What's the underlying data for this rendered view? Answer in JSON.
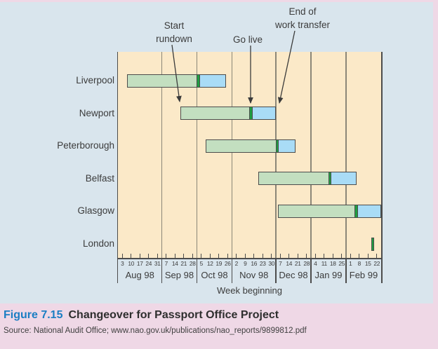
{
  "figure": {
    "label": "Figure 7.15",
    "title": "Changeover for Passport Office Project",
    "source": "Source: National Audit Office; www.nao.gov.uk/publications/nao_reports/9899812.pdf"
  },
  "chart_data": {
    "type": "gantt",
    "xlabel": "Week beginning",
    "x_unit": "weeks, week 0 = week beginning 3 Aug 98",
    "xlim_weeks": [
      0,
      30
    ],
    "axis_months": [
      {
        "label": "Aug 98",
        "weeks": [
          "3",
          "10",
          "17",
          "24",
          "31"
        ]
      },
      {
        "label": "Sep 98",
        "weeks": [
          "7",
          "14",
          "21",
          "28"
        ]
      },
      {
        "label": "Oct 98",
        "weeks": [
          "5",
          "12",
          "19",
          "26"
        ]
      },
      {
        "label": "Nov 98",
        "weeks": [
          "2",
          "9",
          "16",
          "23",
          "30"
        ]
      },
      {
        "label": "Dec 98",
        "weeks": [
          "7",
          "14",
          "21",
          "28"
        ]
      },
      {
        "label": "Jan 99",
        "weeks": [
          "4",
          "11",
          "18",
          "25"
        ]
      },
      {
        "label": "Feb 99",
        "weeks": [
          "1",
          "8",
          "15",
          "22"
        ]
      }
    ],
    "segment_meaning": {
      "light_green_bar": "rundown period (from start rundown to go live)",
      "dark_green_marker": "go live",
      "blue_bar": "work transfer period (go live to end of work transfer)"
    },
    "offices": [
      {
        "name": "Liverpool",
        "rundown_start_week": 1,
        "go_live_week": 9,
        "transfer_end_week": 12.3
      },
      {
        "name": "Newport",
        "rundown_start_week": 7.1,
        "go_live_week": 15,
        "transfer_end_week": 18
      },
      {
        "name": "Peterborough",
        "rundown_start_week": 10,
        "go_live_week": 18,
        "transfer_end_week": 20.2
      },
      {
        "name": "Belfast",
        "rundown_start_week": 16,
        "go_live_week": 24,
        "transfer_end_week": 27.2
      },
      {
        "name": "Glasgow",
        "rundown_start_week": 18.2,
        "go_live_week": 27,
        "transfer_end_week": 30
      },
      {
        "name": "London",
        "rundown_start_week": null,
        "go_live_week": 29,
        "transfer_end_week": null
      }
    ],
    "annotations": [
      {
        "label": "Start rundown",
        "display": "Start\nrundown",
        "points_to": "Newport bar start"
      },
      {
        "label": "Go live",
        "display": "Go live",
        "points_to": "Newport go-live marker"
      },
      {
        "label": "End of work transfer",
        "display": "End of\nwork transfer",
        "points_to": "Newport bar end"
      }
    ]
  },
  "colors": {
    "page_bg": "#efd8e6",
    "card_bg": "#d9e5ed",
    "plot_bg": "#fbe9c8",
    "rundown_green": "#c3dfc0",
    "transfer_blue": "#a9dcf6",
    "golive_green": "#1f9e41",
    "bar_border": "#4c4c4c",
    "grid_line": "#8b8778",
    "figure_blue": "#1b7ec3",
    "text": "#3b3b3b"
  }
}
